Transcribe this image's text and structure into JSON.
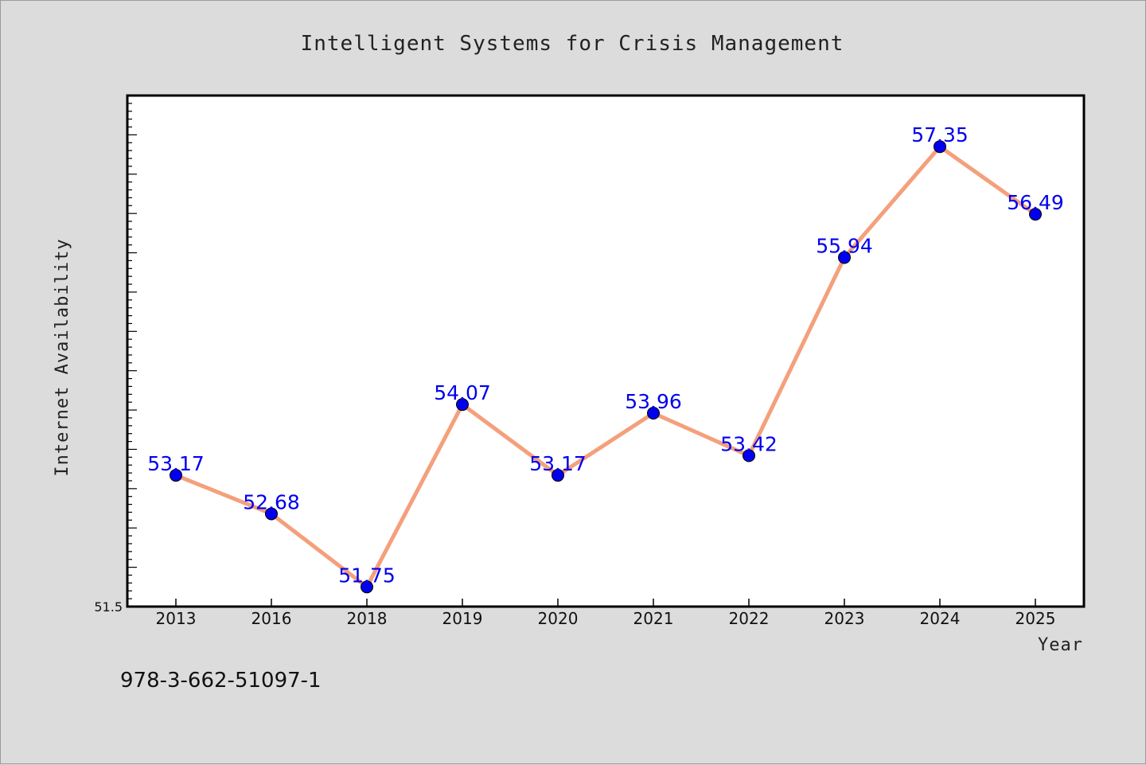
{
  "chart_data": {
    "type": "line",
    "title": "Intelligent Systems for Crisis Management",
    "xlabel": "Year",
    "ylabel": "Internet Availability",
    "categories": [
      "2013",
      "2016",
      "2018",
      "2019",
      "2020",
      "2021",
      "2022",
      "2023",
      "2024",
      "2025"
    ],
    "series": [
      {
        "values": [
          53.17,
          52.68,
          51.75,
          54.07,
          53.17,
          53.96,
          53.42,
          55.94,
          57.35,
          56.49
        ]
      }
    ],
    "data_labels": [
      "53.17",
      "52.68",
      "51.75",
      "54.07",
      "53.17",
      "53.96",
      "53.42",
      "55.94",
      "57.35",
      "56.49"
    ],
    "ylim": [
      51.5,
      58.0
    ],
    "y_tick_labels": [
      "51.5"
    ],
    "grid": false,
    "colors": {
      "line": "#f4a07c",
      "marker": "#0000ee",
      "data_label": "#0000ee",
      "plot_background": "#ffffff",
      "figure_background": "#dcdcdc"
    }
  },
  "footer": {
    "isbn": "978-3-662-51097-1"
  }
}
